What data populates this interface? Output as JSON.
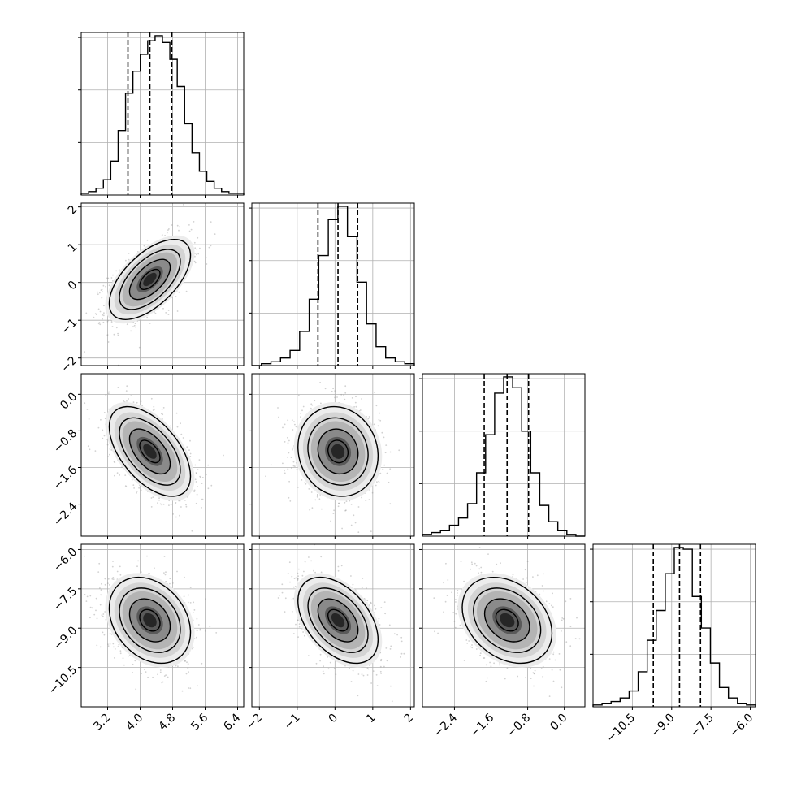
{
  "chart_data": {
    "type": "corner",
    "parameters": [
      {
        "ticks": [
          3.2,
          4.0,
          4.8,
          5.6,
          6.4
        ],
        "tick_labels": [
          "3.2",
          "4.0",
          "4.8",
          "5.6",
          "6.4"
        ],
        "range": [
          2.55,
          6.55
        ],
        "quantiles": [
          3.7,
          4.24,
          4.78
        ],
        "mean": 4.24,
        "sd": 0.5,
        "hist_heights": [
          1,
          2,
          4,
          9,
          20,
          38,
          60,
          73,
          83,
          91,
          94,
          90,
          80,
          64,
          42,
          25,
          14,
          8,
          4,
          2,
          1,
          1
        ]
      },
      {
        "ticks": [
          -2,
          -1,
          0,
          1,
          2
        ],
        "tick_labels": [
          "−2",
          "−1",
          "0",
          "1",
          "2"
        ],
        "range": [
          -2.2,
          2.1
        ],
        "quantiles": [
          -0.45,
          0.08,
          0.6
        ],
        "mean": 0.08,
        "sd": 0.53,
        "hist_heights": [
          0,
          1,
          2,
          4,
          8,
          18,
          35,
          58,
          77,
          84,
          68,
          44,
          22,
          10,
          4,
          2,
          1
        ]
      },
      {
        "ticks": [
          -2.4,
          -1.6,
          -0.8,
          0.0
        ],
        "tick_labels": [
          "−2.4",
          "−1.6",
          "−0.8",
          "0.0"
        ],
        "range": [
          -3.1,
          0.45
        ],
        "quantiles": [
          -1.75,
          -1.25,
          -0.78
        ],
        "mean": -1.25,
        "sd": 0.49,
        "hist_heights": [
          1,
          2,
          3,
          6,
          10,
          18,
          35,
          56,
          79,
          88,
          82,
          58,
          35,
          17,
          8,
          3,
          1,
          0
        ]
      },
      {
        "ticks": [
          -10.5,
          -9.0,
          -7.5,
          -6.0
        ],
        "tick_labels": [
          "−10.5",
          "−9.0",
          "−7.5",
          "−6.0"
        ],
        "range": [
          -12.0,
          -5.8
        ],
        "quantiles": [
          -9.7,
          -8.7,
          -7.9
        ],
        "mean": -8.7,
        "sd": 0.82,
        "hist_heights": [
          1,
          2,
          3,
          5,
          9,
          20,
          38,
          55,
          76,
          91,
          90,
          63,
          45,
          25,
          11,
          5,
          2,
          1
        ]
      }
    ],
    "correlations": [
      [
        1.0,
        0.6,
        -0.55,
        -0.28
      ],
      [
        0.6,
        1.0,
        -0.1,
        -0.45
      ],
      [
        -0.55,
        -0.1,
        1.0,
        -0.3
      ],
      [
        -0.28,
        -0.45,
        -0.3,
        1.0
      ]
    ],
    "grid": true,
    "contour_levels": [
      0.5,
      1.0,
      1.5
    ],
    "colors": {
      "line": "#000000",
      "scatter": "#999999",
      "grid": "#b0b0b0"
    }
  }
}
